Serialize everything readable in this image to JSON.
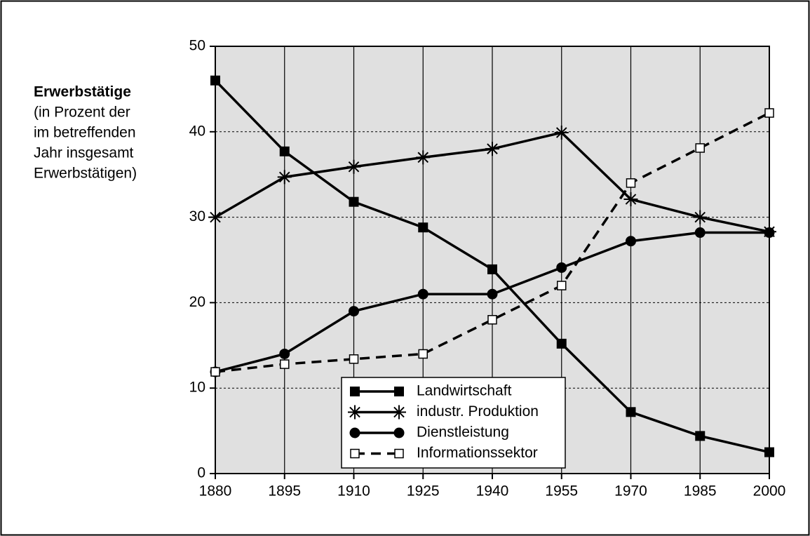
{
  "chart_data": {
    "type": "line",
    "ylabel": "Erwerbstätige",
    "ylabel_note": [
      "(in Prozent der",
      "im betreffenden",
      "Jahr insgesamt",
      "Erwerbstätigen)"
    ],
    "x": [
      1880,
      1895,
      1910,
      1925,
      1940,
      1955,
      1970,
      1985,
      2000
    ],
    "xlim": [
      1880,
      2000
    ],
    "xticks": [
      1880,
      1895,
      1910,
      1925,
      1940,
      1955,
      1970,
      1985,
      2000
    ],
    "ylim": [
      0,
      50
    ],
    "yticks": [
      0,
      10,
      20,
      30,
      40,
      50
    ],
    "grid": true,
    "legend": "bottom-center",
    "series": [
      {
        "name": "Landwirtschaft",
        "color": "#000000",
        "marker": "filled-square",
        "dash": false,
        "values": [
          46,
          37.7,
          31.8,
          28.8,
          23.9,
          15.2,
          7.2,
          4.4,
          2.5
        ]
      },
      {
        "name": "industr. Produktion",
        "color": "#000000",
        "marker": "star",
        "dash": false,
        "values": [
          30,
          34.7,
          35.9,
          37,
          38,
          39.9,
          32.1,
          30,
          28.3
        ]
      },
      {
        "name": "Dienstleistung",
        "color": "#000000",
        "marker": "circle",
        "dash": false,
        "values": [
          11.9,
          14,
          19,
          21,
          21,
          24.1,
          27.2,
          28.2,
          28.2
        ]
      },
      {
        "name": "Informationssektor",
        "color": "#000000",
        "marker": "open-square",
        "dash": true,
        "values": [
          11.9,
          12.8,
          13.4,
          14,
          18,
          22,
          34,
          38.1,
          42.2
        ]
      }
    ]
  }
}
